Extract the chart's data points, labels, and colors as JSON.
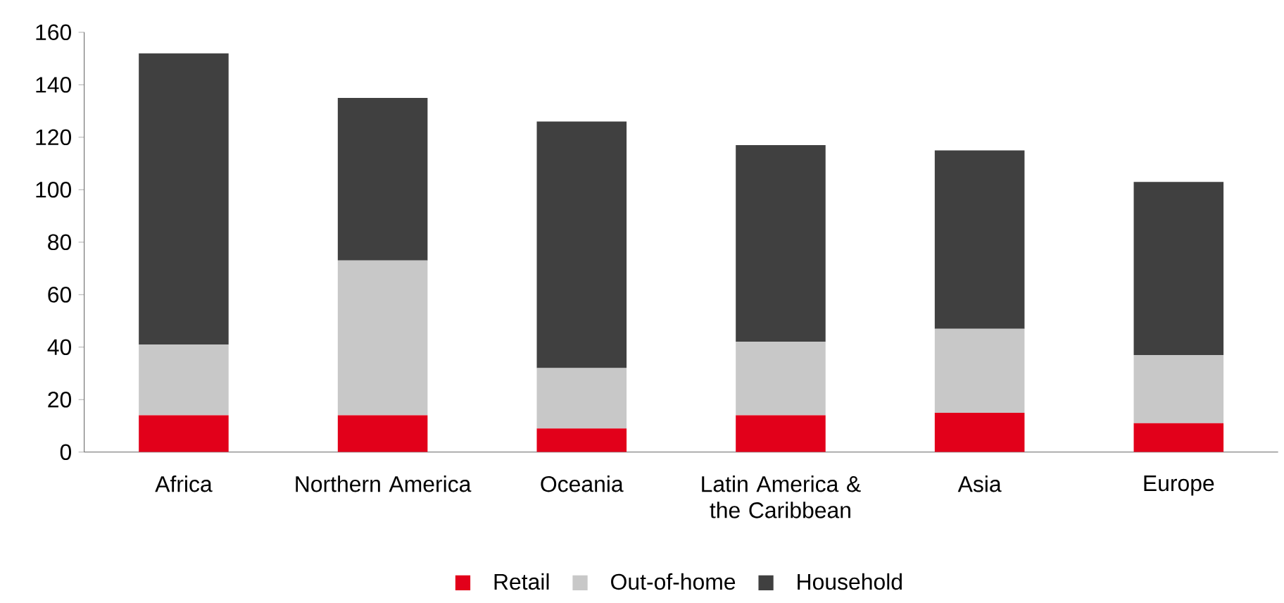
{
  "chart_data": {
    "type": "bar",
    "stacked": true,
    "categories": [
      "Africa",
      "Northern America",
      "Oceania",
      "Latin America & the Caribbean",
      "Asia",
      "Europe"
    ],
    "series": [
      {
        "name": "Retail",
        "color": "#e2001a",
        "values": [
          14,
          14,
          9,
          14,
          15,
          11
        ]
      },
      {
        "name": "Out-of-home",
        "color": "#c8c8c8",
        "values": [
          27,
          59,
          23,
          28,
          32,
          26
        ]
      },
      {
        "name": "Household",
        "color": "#404040",
        "values": [
          111,
          62,
          94,
          75,
          68,
          66
        ]
      }
    ],
    "ylim": [
      0,
      160
    ],
    "yticks": [
      0,
      20,
      40,
      60,
      80,
      100,
      120,
      140,
      160
    ],
    "grid": false,
    "legend": "bottom"
  }
}
